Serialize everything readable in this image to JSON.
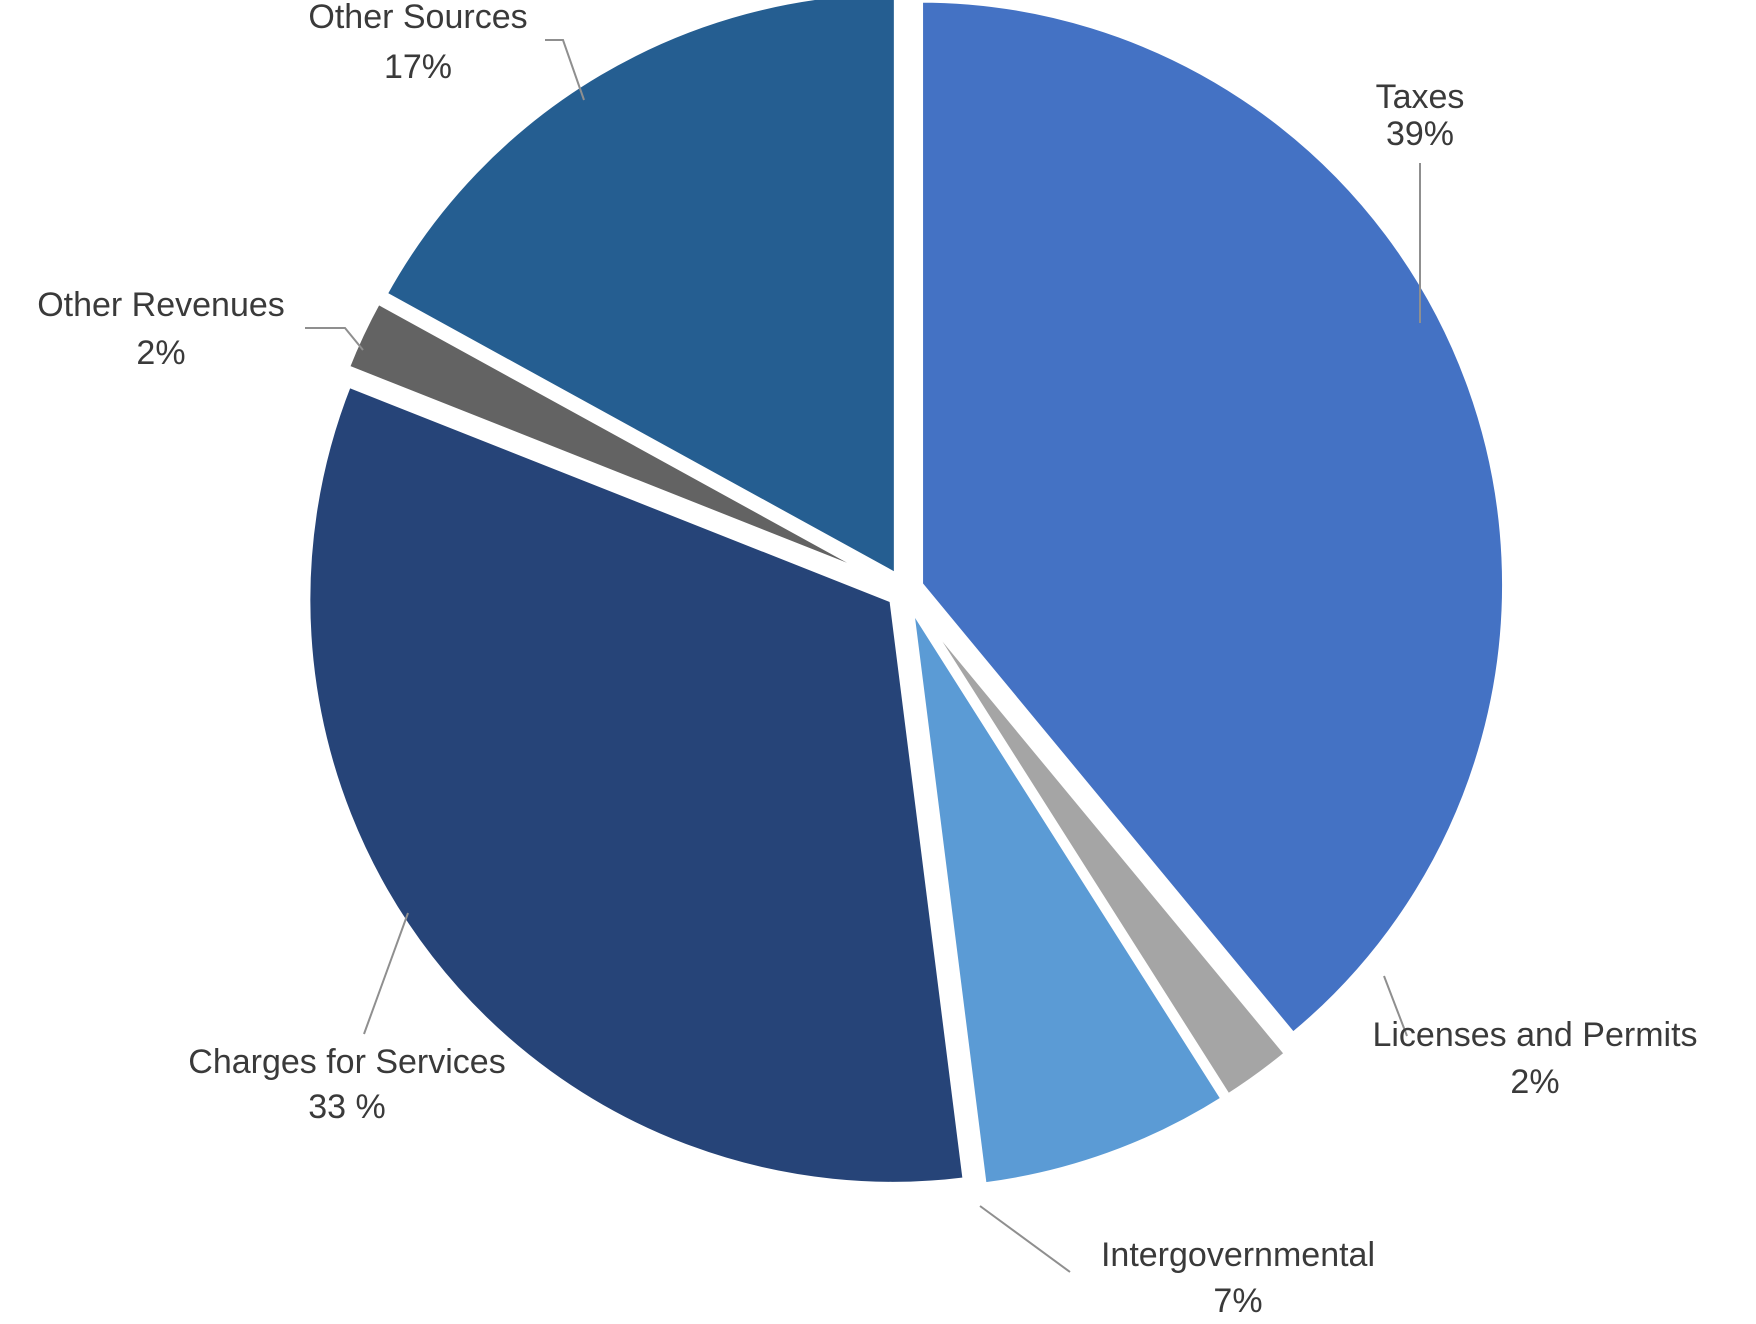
{
  "chart_data": {
    "type": "pie",
    "title": "",
    "slices": [
      {
        "name": "Taxes",
        "label": "Taxes",
        "value_label": "39%",
        "value": 39,
        "color": "#4472C4"
      },
      {
        "name": "Licenses and Permits",
        "label": "Licenses and Permits",
        "value_label": "2%",
        "value": 2,
        "color": "#A5A5A5"
      },
      {
        "name": "Intergovernmental",
        "label": "Intergovernmental",
        "value_label": "7%",
        "value": 7,
        "color": "#5B9BD5"
      },
      {
        "name": "Charges for Services",
        "label": "Charges for Services",
        "value_label": "33 %",
        "value": 33,
        "color": "#264478"
      },
      {
        "name": "Other Revenues",
        "label": "Other Revenues",
        "value_label": "2%",
        "value": 2,
        "color": "#636363"
      },
      {
        "name": "Other Sources",
        "label": "Other Sources",
        "value_label": "17%",
        "value": 17,
        "color": "#255E91"
      }
    ],
    "start_angle": "12 o'clock",
    "direction": "clockwise",
    "exploded": true,
    "legend": "none",
    "data_labels": "outside with leader lines"
  }
}
